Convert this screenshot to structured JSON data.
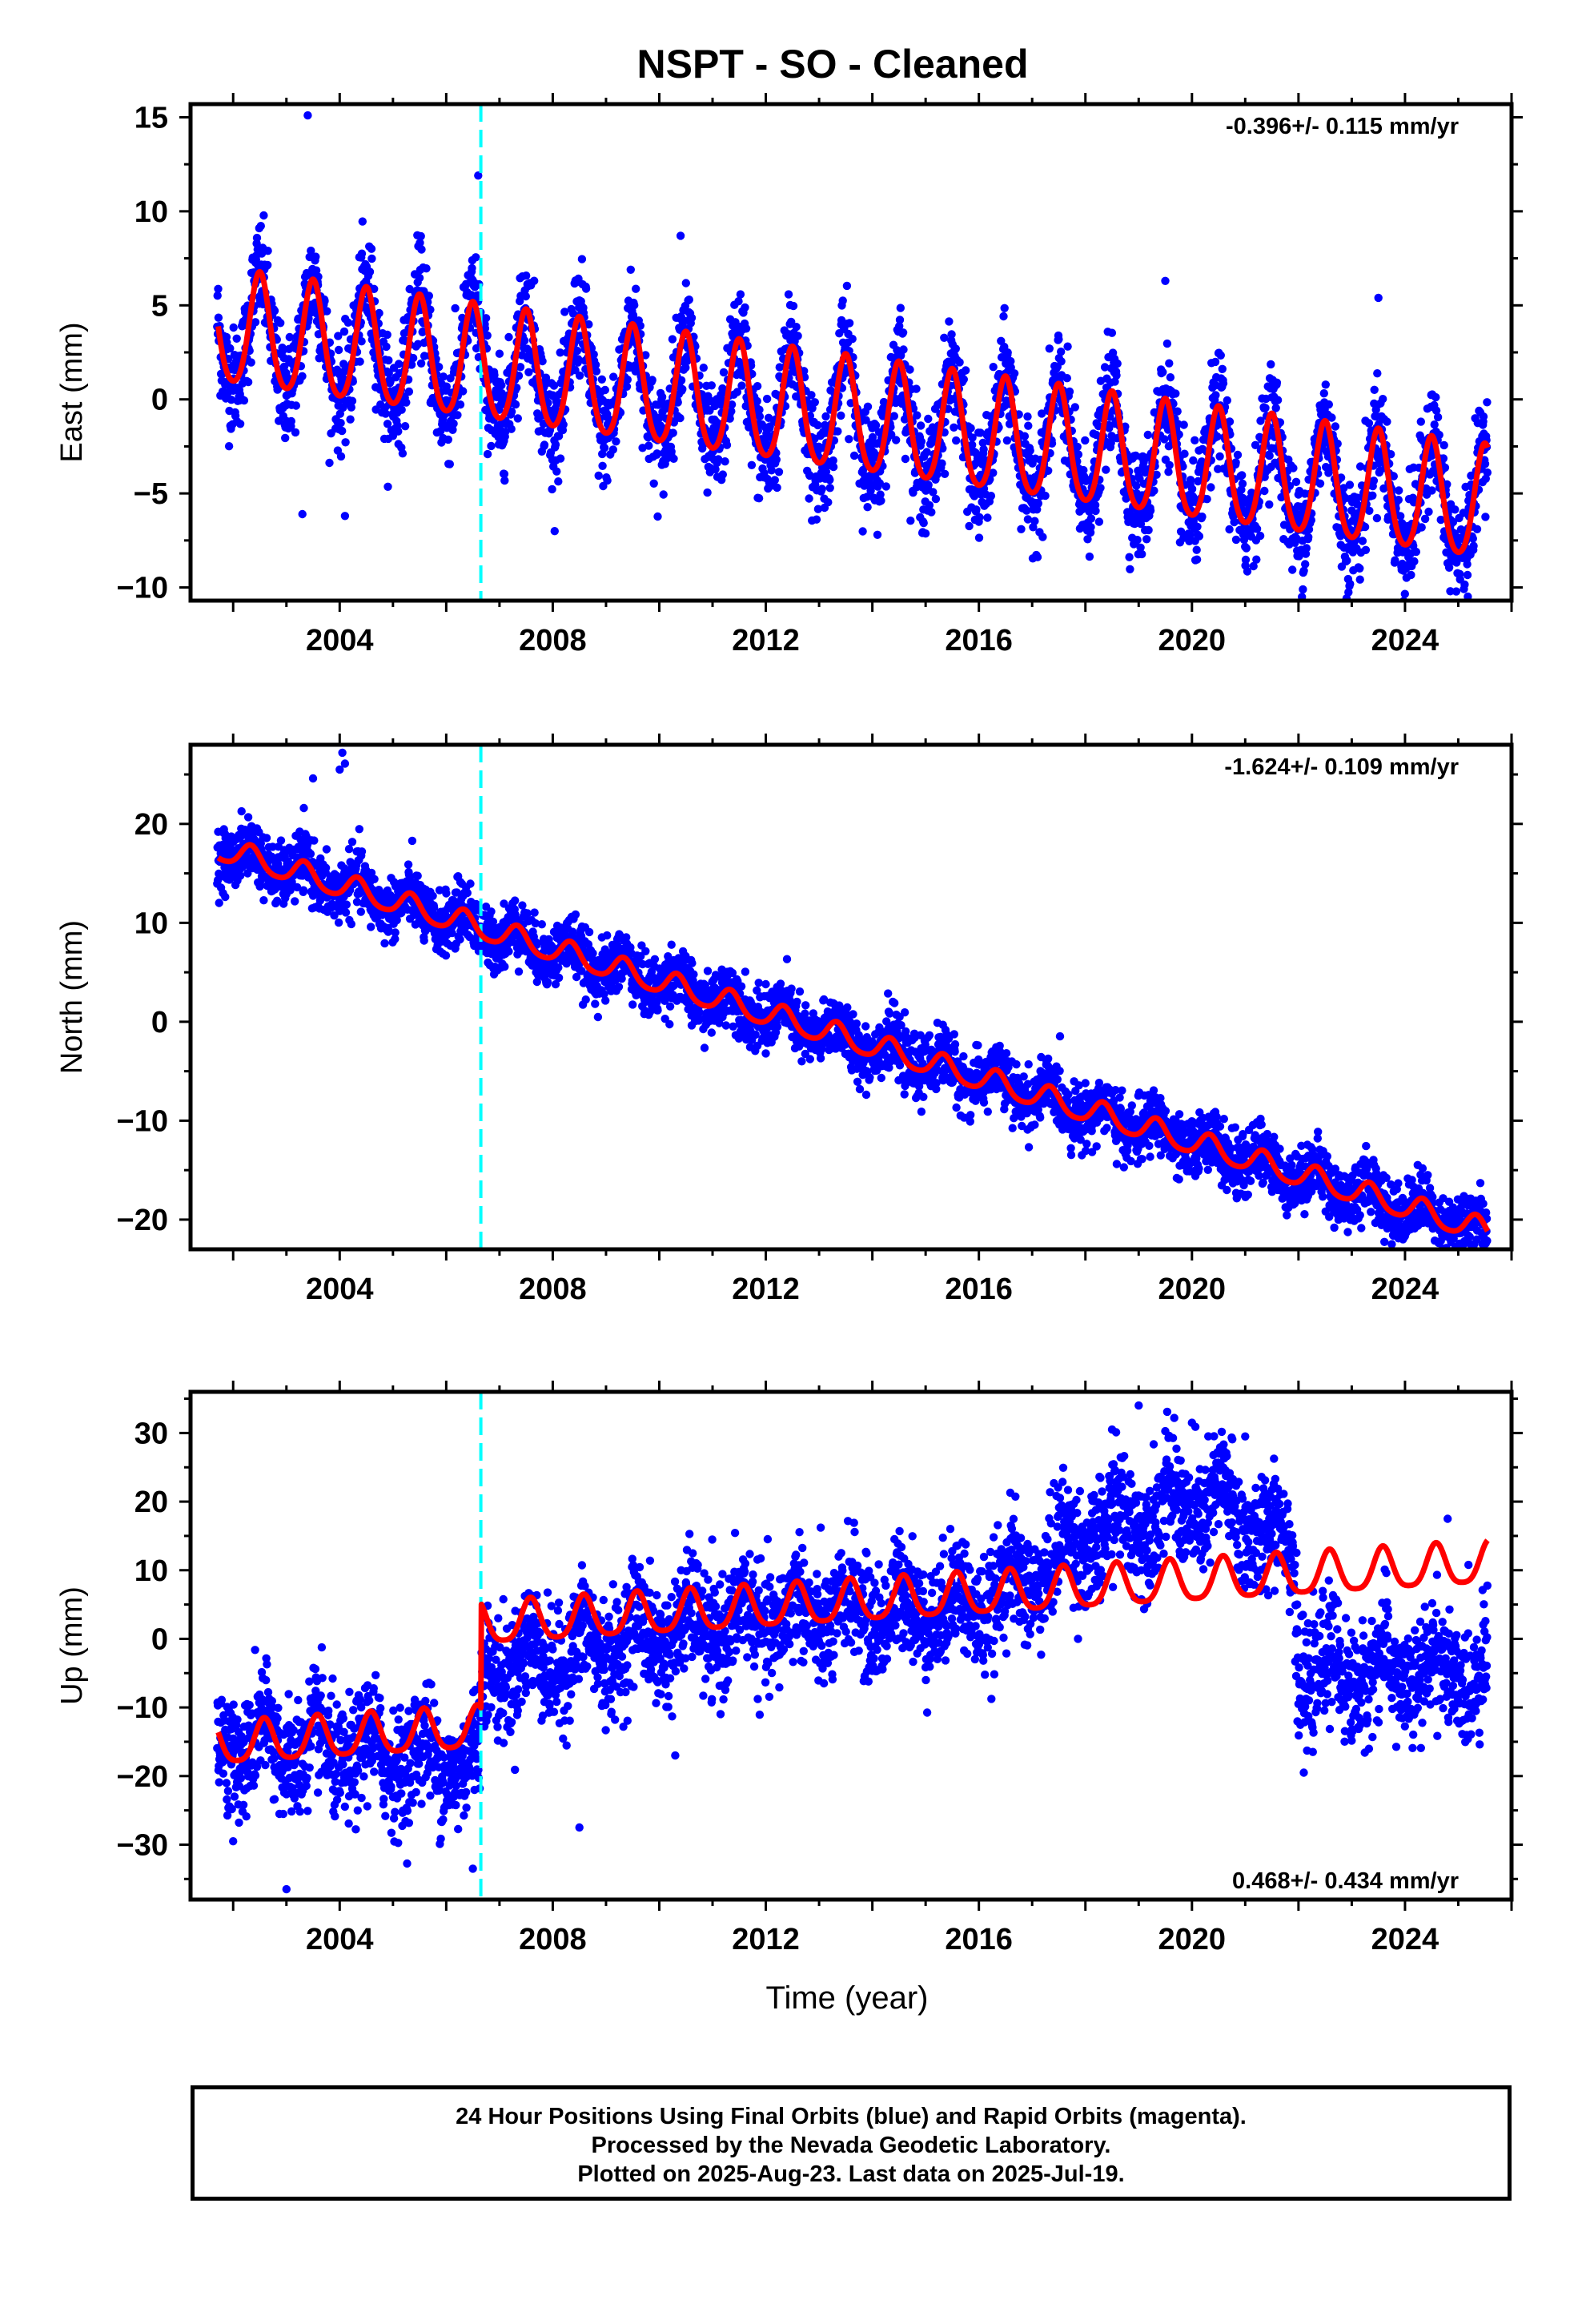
{
  "title": "NSPT  - SO - Cleaned",
  "xlabel": "Time (year)",
  "caption": {
    "line1": "24 Hour Positions Using Final Orbits (blue) and Rapid Orbits (magenta).",
    "line2": "Processed by the Nevada Geodetic Laboratory.",
    "line3": "Plotted on 2025-Aug-23. Last data on 2025-Jul-19."
  },
  "colors": {
    "data": "#0000ff",
    "model": "#ff0000",
    "offset_line": "#00ffff",
    "frame": "#000000"
  },
  "chart_data": [
    {
      "type": "scatter",
      "ylabel": "East (mm)",
      "rate_label": "-0.396+/- 0.115 mm/yr",
      "xlim": [
        2001.2,
        2026.0
      ],
      "ylim": [
        -10.7,
        15.7
      ],
      "xticks": [
        2004,
        2008,
        2012,
        2016,
        2020,
        2024
      ],
      "yticks": [
        -10,
        -5,
        0,
        5,
        10,
        15
      ],
      "offset_epoch": 2006.65,
      "model": {
        "intercept": 3.7,
        "trend": -0.396,
        "annual_amp": 3.0,
        "semiannual_amp": 0.4,
        "phase_month": 6,
        "step": 0
      },
      "scatter": {
        "noise": 1.4,
        "start": 2001.7,
        "end": 2025.55
      },
      "outliers": [
        [
          2003.4,
          15.1
        ],
        [
          2006.6,
          11.9
        ],
        [
          2010.4,
          8.7
        ],
        [
          2023.5,
          5.4
        ],
        [
          2019.5,
          6.3
        ],
        [
          2024.85,
          -10.2
        ],
        [
          2003.3,
          -6.1
        ],
        [
          2004.1,
          -6.2
        ]
      ],
      "gaps": []
    },
    {
      "type": "scatter",
      "ylabel": "North (mm)",
      "rate_label": "-1.624+/- 0.109 mm/yr",
      "xlim": [
        2001.2,
        2026.0
      ],
      "ylim": [
        -23.0,
        28.0
      ],
      "xticks": [
        2004,
        2008,
        2012,
        2016,
        2020,
        2024
      ],
      "yticks": [
        -20,
        -10,
        0,
        10,
        20
      ],
      "offset_epoch": 2006.65,
      "model": {
        "intercept": 17.5,
        "trend": -1.624,
        "annual_amp": 1.2,
        "semiannual_amp": 0.2,
        "phase_month": 4,
        "step": 0
      },
      "scatter": {
        "noise": 1.5,
        "start": 2001.7,
        "end": 2025.55
      },
      "outliers": [
        [
          2004.05,
          27.2
        ],
        [
          2004.1,
          26.1
        ],
        [
          2004.0,
          25.5
        ],
        [
          2003.5,
          24.6
        ],
        [
          2012.0,
          -3.2
        ],
        [
          2025.3,
          -22.5
        ],
        [
          2023.5,
          -20.0
        ]
      ],
      "gaps": []
    },
    {
      "type": "scatter",
      "ylabel": "Up (mm)",
      "rate_label": "0.468+/- 0.434 mm/yr",
      "xlim": [
        2001.2,
        2026.0
      ],
      "ylim": [
        -38.0,
        36.0
      ],
      "xticks": [
        2004,
        2008,
        2012,
        2016,
        2020,
        2024
      ],
      "yticks": [
        -30,
        -20,
        -10,
        0,
        10,
        20,
        30
      ],
      "offset_epoch": 2006.65,
      "model": {
        "intercept": -15.5,
        "trend": 0.468,
        "annual_amp": 3.0,
        "semiannual_amp": 0.6,
        "phase_month": 7,
        "step": 15.2
      },
      "scatter": {
        "noise": 4.2,
        "start": 2001.7,
        "end": 2025.55
      },
      "data_level": [
        [
          2001.7,
          -15
        ],
        [
          2006.62,
          -18
        ],
        [
          2006.7,
          -4
        ],
        [
          2008.0,
          -3
        ],
        [
          2009.5,
          0
        ],
        [
          2012.0,
          3
        ],
        [
          2014.0,
          4
        ],
        [
          2016.0,
          5
        ],
        [
          2017.0,
          9
        ],
        [
          2017.8,
          14
        ],
        [
          2019.0,
          18
        ],
        [
          2020.5,
          20
        ],
        [
          2021.2,
          16
        ],
        [
          2021.9,
          14
        ],
        [
          2022.0,
          -5
        ],
        [
          2025.55,
          -5
        ]
      ],
      "outliers": [
        [
          2019.0,
          34
        ],
        [
          2020.0,
          31.5
        ],
        [
          2018.5,
          30.5
        ],
        [
          2021.0,
          29.5
        ],
        [
          2003.0,
          -36.5
        ],
        [
          2006.5,
          -33.5
        ],
        [
          2008.5,
          -27.5
        ],
        [
          2002.0,
          -29.5
        ],
        [
          2010.3,
          -17
        ],
        [
          2024.8,
          17.5
        ],
        [
          2022.1,
          -19.5
        ]
      ],
      "gaps": []
    }
  ]
}
